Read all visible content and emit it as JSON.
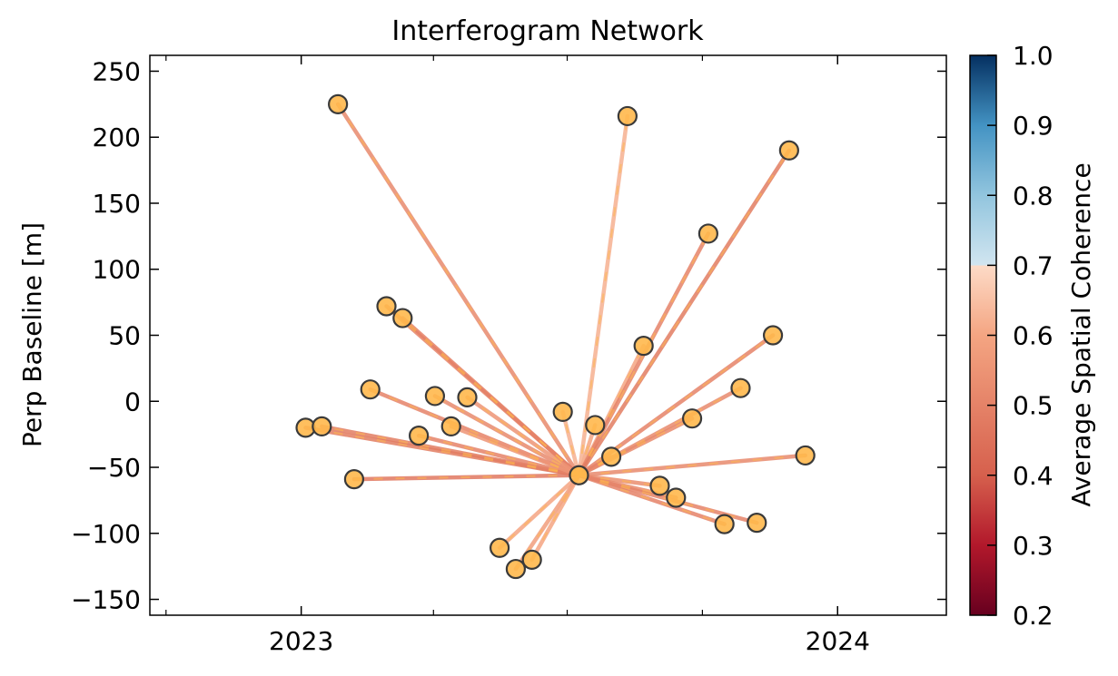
{
  "chart_data": {
    "type": "scatter",
    "title": "Interferogram Network",
    "xlabel": "",
    "ylabel": "Perp Baseline [m]",
    "x_ticks": [
      "2023",
      "2024"
    ],
    "y_ticks": [
      -150,
      -100,
      -50,
      0,
      50,
      100,
      150,
      200,
      250
    ],
    "xlim": [
      "2022-09-20",
      "2024-03-15"
    ],
    "ylim": [
      -162,
      262
    ],
    "grid": false,
    "reference": {
      "date": "2023-07-09",
      "baseline": -56
    },
    "acquisitions": [
      {
        "date": "2023-01-04",
        "baseline": -20,
        "coherence": 0.48
      },
      {
        "date": "2023-01-15",
        "baseline": -19,
        "coherence": 0.48
      },
      {
        "date": "2023-01-26",
        "baseline": 225,
        "coherence": 0.52
      },
      {
        "date": "2023-02-06",
        "baseline": -59,
        "coherence": 0.47
      },
      {
        "date": "2023-02-17",
        "baseline": 9,
        "coherence": 0.5
      },
      {
        "date": "2023-02-28",
        "baseline": 72,
        "coherence": 0.5
      },
      {
        "date": "2023-03-11",
        "baseline": 63,
        "coherence": 0.49
      },
      {
        "date": "2023-03-22",
        "baseline": -26,
        "coherence": 0.5
      },
      {
        "date": "2023-04-02",
        "baseline": 4,
        "coherence": 0.52
      },
      {
        "date": "2023-04-13",
        "baseline": -19,
        "coherence": 0.55
      },
      {
        "date": "2023-04-24",
        "baseline": 3,
        "coherence": 0.55
      },
      {
        "date": "2023-05-16",
        "baseline": -111,
        "coherence": 0.6
      },
      {
        "date": "2023-05-27",
        "baseline": -127,
        "coherence": 0.58
      },
      {
        "date": "2023-06-07",
        "baseline": -120,
        "coherence": 0.6
      },
      {
        "date": "2023-06-28",
        "baseline": -8,
        "coherence": 0.62
      },
      {
        "date": "2023-07-20",
        "baseline": -18,
        "coherence": 0.6
      },
      {
        "date": "2023-07-31",
        "baseline": -42,
        "coherence": 0.55
      },
      {
        "date": "2023-08-11",
        "baseline": 216,
        "coherence": 0.62
      },
      {
        "date": "2023-08-22",
        "baseline": 42,
        "coherence": 0.6
      },
      {
        "date": "2023-09-02",
        "baseline": -64,
        "coherence": 0.53
      },
      {
        "date": "2023-09-13",
        "baseline": -73,
        "coherence": 0.52
      },
      {
        "date": "2023-09-24",
        "baseline": -13,
        "coherence": 0.52
      },
      {
        "date": "2023-10-05",
        "baseline": 127,
        "coherence": 0.5
      },
      {
        "date": "2023-10-16",
        "baseline": -93,
        "coherence": 0.5
      },
      {
        "date": "2023-10-27",
        "baseline": 10,
        "coherence": 0.52
      },
      {
        "date": "2023-11-07",
        "baseline": -92,
        "coherence": 0.5
      },
      {
        "date": "2023-11-18",
        "baseline": 50,
        "coherence": 0.5
      },
      {
        "date": "2023-11-29",
        "baseline": 190,
        "coherence": 0.48
      },
      {
        "date": "2023-12-10",
        "baseline": -41,
        "coherence": 0.52
      }
    ],
    "colorbar": {
      "label": "Average Spatial Coherence",
      "range": [
        0.2,
        1.0
      ],
      "ticks": [
        "0.2",
        "0.3",
        "0.4",
        "0.5",
        "0.6",
        "0.7",
        "0.8",
        "0.9",
        "1.0"
      ],
      "colormap": "RdBu",
      "stops": [
        {
          "value": 0.2,
          "color": "#67001f"
        },
        {
          "value": 0.3,
          "color": "#b2182b"
        },
        {
          "value": 0.4,
          "color": "#d6604d"
        },
        {
          "value": 0.6,
          "color": "#f4a582"
        },
        {
          "value": 0.7,
          "color": "#fddbc7"
        },
        {
          "value": 0.7,
          "color": "#d1e5f0"
        },
        {
          "value": 0.8,
          "color": "#92c5de"
        },
        {
          "value": 0.9,
          "color": "#4393c3"
        },
        {
          "value": 1.0,
          "color": "#053061"
        }
      ],
      "masked_range_visible": [
        0.2,
        0.7
      ]
    },
    "marker_fill": "#ffb84d",
    "marker_edge": "#3a3a3a",
    "line_color": "#c8464f"
  }
}
